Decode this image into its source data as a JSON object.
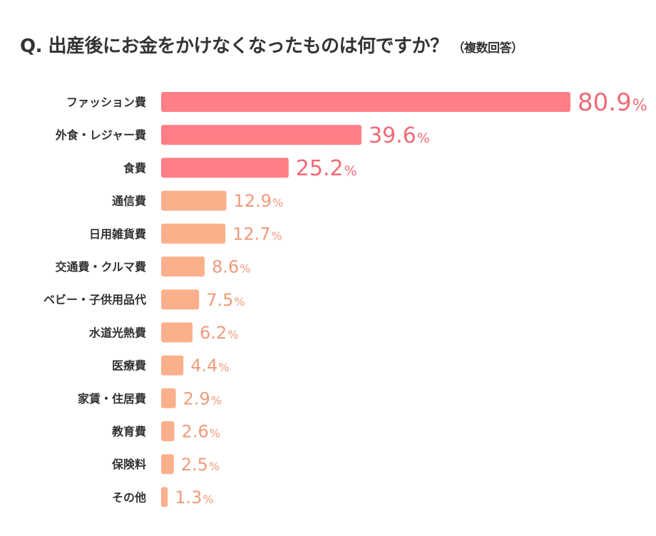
{
  "header": {
    "title": "Q. 出産後にお金をかけなくなったものは何ですか？",
    "note": "（複数回答）"
  },
  "colors": {
    "top_bar": "#ff7f86",
    "top_label": "#f06a76",
    "other_bar": "#fbb08c",
    "other_label": "#ef9a7a"
  },
  "chart_data": {
    "type": "bar",
    "orientation": "horizontal",
    "title": "Q. 出産後にお金をかけなくなったものは何ですか？（複数回答）",
    "categories": [
      "ファッション費",
      "外食・レジャー費",
      "食費",
      "通信費",
      "日用雑貨費",
      "交通費・クルマ費",
      "ベビー・子供用品代",
      "水道光熱費",
      "医療費",
      "家賃・住居費",
      "教育費",
      "保険料",
      "その他"
    ],
    "values": [
      80.9,
      39.6,
      25.2,
      12.9,
      12.7,
      8.6,
      7.5,
      6.2,
      4.4,
      2.9,
      2.6,
      2.5,
      1.3
    ],
    "value_suffix": "%",
    "highlight_top": 3,
    "xlim": [
      0,
      80.9
    ],
    "grid": false,
    "legend": "none"
  }
}
